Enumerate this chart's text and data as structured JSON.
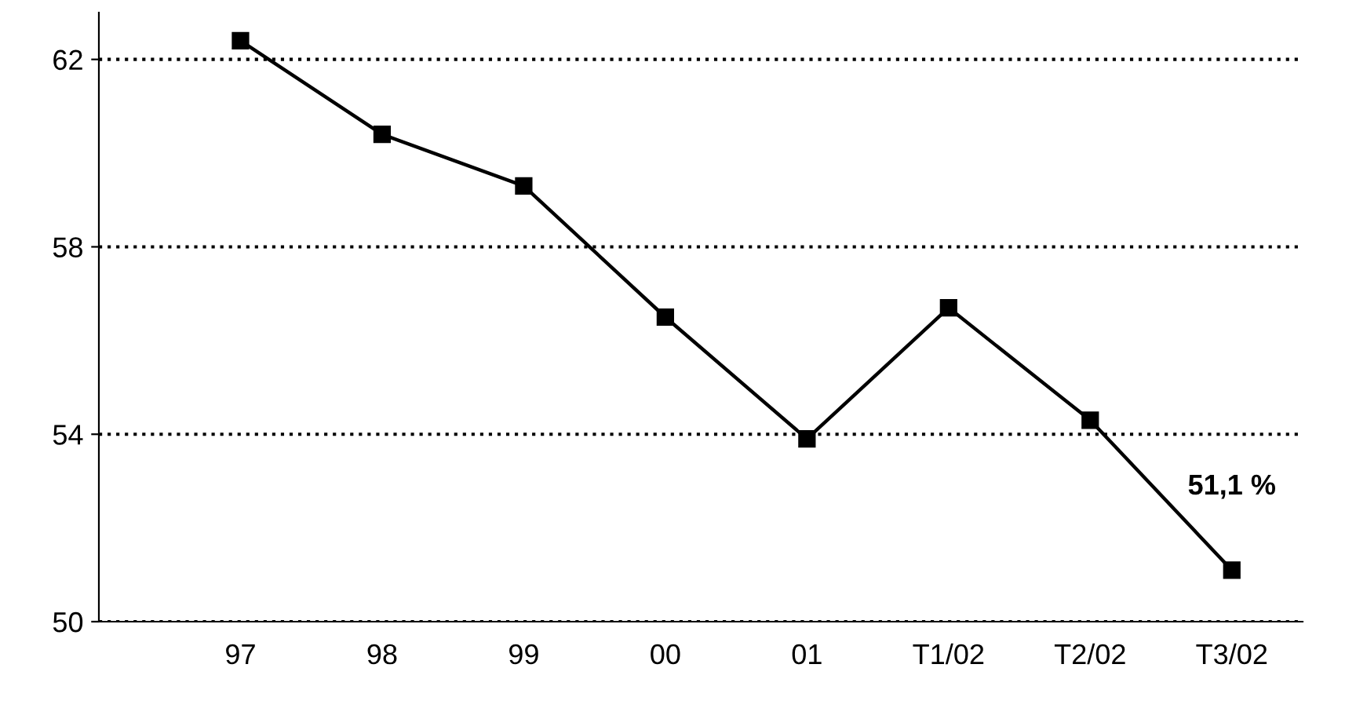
{
  "chart_data": {
    "type": "line",
    "categories": [
      "97",
      "98",
      "99",
      "00",
      "01",
      "T1/02",
      "T2/02",
      "T3/02"
    ],
    "series": [
      {
        "color": "#000000",
        "values": [
          62.4,
          60.4,
          59.3,
          56.5,
          53.9,
          56.7,
          54.3,
          51.1
        ],
        "value_labels": [
          null,
          null,
          null,
          null,
          null,
          null,
          null,
          "51,1 %"
        ]
      }
    ],
    "ylim": [
      50,
      63
    ],
    "yticks": [
      50,
      54,
      58,
      62
    ],
    "grid": "y",
    "marker": "square",
    "line_style": "solid"
  }
}
